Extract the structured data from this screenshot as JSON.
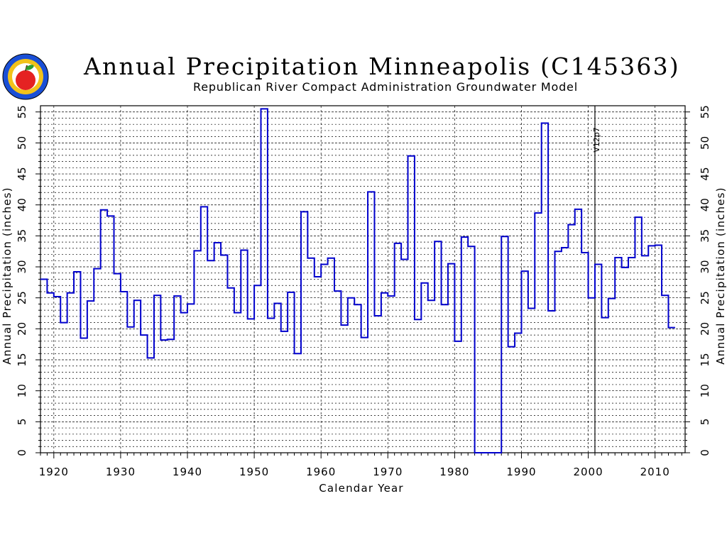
{
  "header": {
    "title": "Annual Precipitation Minneapolis (C145363)",
    "subtitle": "Republican River Compact Administration Groundwater Model"
  },
  "marker": {
    "label": "V12p7",
    "year": 2001
  },
  "colors": {
    "series": "#0000cc",
    "grid": "#000000",
    "logo_apple": "#e52222",
    "logo_ring": "#1a4fd6",
    "logo_inner": "#f2c21a"
  },
  "chart_data": {
    "type": "line",
    "title": "Annual Precipitation Minneapolis (C145363)",
    "subtitle": "Republican River Compact Administration Groundwater Model",
    "xlabel": "Calendar Year",
    "ylabel": "Annual Precipitation (inches)",
    "ylabel_right": "Annual Precipitation (inches)",
    "xlim": [
      1918,
      2014
    ],
    "ylim": [
      0,
      56
    ],
    "x_ticks": [
      1920,
      1930,
      1940,
      1950,
      1960,
      1970,
      1980,
      1990,
      2000,
      2010
    ],
    "y_ticks": [
      0,
      5,
      10,
      15,
      20,
      25,
      30,
      35,
      40,
      45,
      50,
      55
    ],
    "grid": true,
    "step": true,
    "series": [
      {
        "x": [
          1918,
          1919,
          1920,
          1921,
          1922,
          1923,
          1924,
          1925,
          1926,
          1927,
          1928,
          1929,
          1930,
          1931,
          1932,
          1933,
          1934,
          1935,
          1936,
          1937,
          1938,
          1939,
          1940,
          1941,
          1942,
          1943,
          1944,
          1945,
          1946,
          1947,
          1948,
          1949,
          1950,
          1951,
          1952,
          1953,
          1954,
          1955,
          1956,
          1957,
          1958,
          1959,
          1960,
          1961,
          1962,
          1963,
          1964,
          1965,
          1966,
          1967,
          1968,
          1969,
          1970,
          1971,
          1972,
          1973,
          1974,
          1975,
          1976,
          1977,
          1978,
          1979,
          1980,
          1981,
          1982,
          1983,
          1984,
          1985,
          1986,
          1987,
          1988,
          1989,
          1990,
          1991,
          1992,
          1993,
          1994,
          1995,
          1996,
          1997,
          1998,
          1999,
          2000,
          2001,
          2002,
          2003,
          2004,
          2005,
          2006,
          2007,
          2008,
          2009,
          2010,
          2011,
          2012
        ],
        "values": [
          28.0,
          25.8,
          25.2,
          21.0,
          25.8,
          29.2,
          18.5,
          24.5,
          29.7,
          39.2,
          38.2,
          28.9,
          26.0,
          20.3,
          24.6,
          19.0,
          15.3,
          25.4,
          18.2,
          18.3,
          25.3,
          22.6,
          24.0,
          32.6,
          39.7,
          31.0,
          33.9,
          31.9,
          26.6,
          22.6,
          32.7,
          21.6,
          27.0,
          55.5,
          21.7,
          24.1,
          19.6,
          25.9,
          16.0,
          38.9,
          31.4,
          28.4,
          30.4,
          31.4,
          26.1,
          20.6,
          25.0,
          23.9,
          18.6,
          42.1,
          22.1,
          25.8,
          25.3,
          33.8,
          31.2,
          47.9,
          21.5,
          27.4,
          24.6,
          34.1,
          23.9,
          30.5,
          18.0,
          34.8,
          33.3,
          0,
          0,
          0,
          0,
          34.9,
          17.1,
          19.3,
          29.3,
          23.3,
          38.7,
          53.2,
          22.9,
          32.5,
          33.1,
          36.8,
          39.3,
          32.3,
          25.0,
          30.4,
          21.8,
          24.9,
          31.5,
          29.9,
          31.5,
          38.0,
          31.8,
          33.4,
          33.5,
          25.4,
          20.2
        ]
      }
    ]
  }
}
